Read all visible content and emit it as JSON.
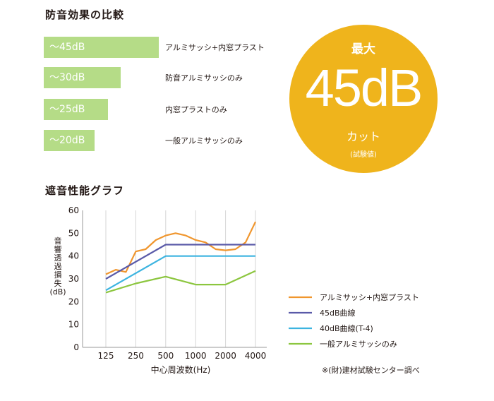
{
  "comparison": {
    "title": "防音効果の比較",
    "items": [
      {
        "value_label": "～45dB",
        "value": 45,
        "desc": "アルミサッシ+内窓プラスト"
      },
      {
        "value_label": "～30dB",
        "value": 30,
        "desc": "防音アルミサッシのみ"
      },
      {
        "value_label": "～25dB",
        "value": 25,
        "desc": "内窓プラストのみ"
      },
      {
        "value_label": "～20dB",
        "value": 20,
        "desc": "一般アルミサッシのみ"
      }
    ],
    "bar_color": "#b5dc87"
  },
  "badge": {
    "top": "最大",
    "big": "45dB",
    "cut": "カット",
    "note": "(試験値)",
    "color": "#efb41c"
  },
  "chart_data": {
    "type": "line",
    "title": "遮音性能グラフ",
    "xlabel": "中心周波数(Hz)",
    "ylabel_chars": [
      "音",
      "響",
      "透",
      "過",
      "損",
      "失",
      "(dB)"
    ],
    "x_ticks": [
      "125",
      "250",
      "500",
      "1000",
      "2000",
      "4000"
    ],
    "x_range": [
      0,
      5
    ],
    "ylim": [
      0,
      60
    ],
    "y_ticks": [
      0,
      10,
      20,
      30,
      40,
      50,
      60
    ],
    "grid": "vertical",
    "legend_placement": "right",
    "series": [
      {
        "name": "アルミサッシ+内窓プラスト",
        "color": "#f0962e",
        "points": [
          [
            0,
            32
          ],
          [
            0.33,
            34
          ],
          [
            0.67,
            33
          ],
          [
            1.0,
            42
          ],
          [
            1.33,
            43
          ],
          [
            1.67,
            47
          ],
          [
            2.0,
            49
          ],
          [
            2.33,
            50
          ],
          [
            2.67,
            49
          ],
          [
            3.0,
            47
          ],
          [
            3.33,
            46
          ],
          [
            3.67,
            43
          ],
          [
            4.0,
            42.5
          ],
          [
            4.33,
            43
          ],
          [
            4.67,
            46
          ],
          [
            5.0,
            55
          ]
        ]
      },
      {
        "name": "45dB曲線",
        "color": "#5a5aa8",
        "points": [
          [
            0,
            30
          ],
          [
            2.0,
            45
          ],
          [
            5.0,
            45
          ]
        ]
      },
      {
        "name": "40dB曲線(T-4)",
        "color": "#3cb4e0",
        "points": [
          [
            0,
            25
          ],
          [
            2.0,
            40
          ],
          [
            5.0,
            40
          ]
        ]
      },
      {
        "name": "一般アルミサッシのみ",
        "color": "#8cc63f",
        "points": [
          [
            0,
            24
          ],
          [
            1.0,
            28
          ],
          [
            2.0,
            31
          ],
          [
            3.0,
            27.5
          ],
          [
            4.0,
            27.5
          ],
          [
            5.0,
            33.5
          ]
        ]
      }
    ]
  },
  "source_note": "※(財)建材試験センター調べ"
}
